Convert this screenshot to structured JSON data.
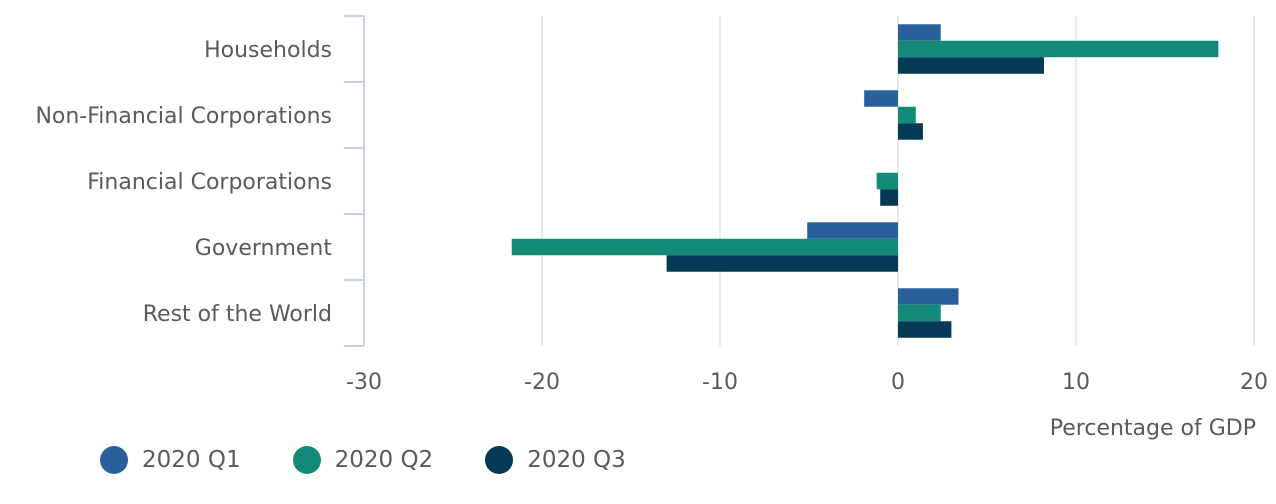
{
  "chart_data": {
    "type": "bar",
    "orientation": "horizontal",
    "categories": [
      "Households",
      "Non-Financial Corporations",
      "Financial Corporations",
      "Government",
      "Rest of the World"
    ],
    "series": [
      {
        "name": "2020 Q1",
        "color": "#2a6099",
        "values": [
          2.4,
          -1.9,
          0.0,
          -5.1,
          3.4
        ]
      },
      {
        "name": "2020 Q2",
        "color": "#138a78",
        "values": [
          18.0,
          1.0,
          -1.2,
          -21.7,
          2.4
        ]
      },
      {
        "name": "2020 Q3",
        "color": "#053a57",
        "values": [
          8.2,
          1.4,
          -1.0,
          -13.0,
          3.0
        ]
      }
    ],
    "xlabel": "Percentage of GDP",
    "ylabel": "",
    "xlim": [
      -30,
      20
    ],
    "xticks": [
      -30,
      -20,
      -10,
      0,
      10,
      20
    ],
    "xtick_labels": [
      "-30",
      "-20",
      "-10",
      "0",
      "10",
      "20"
    ],
    "grid": true,
    "legend_position": "bottom-left"
  }
}
